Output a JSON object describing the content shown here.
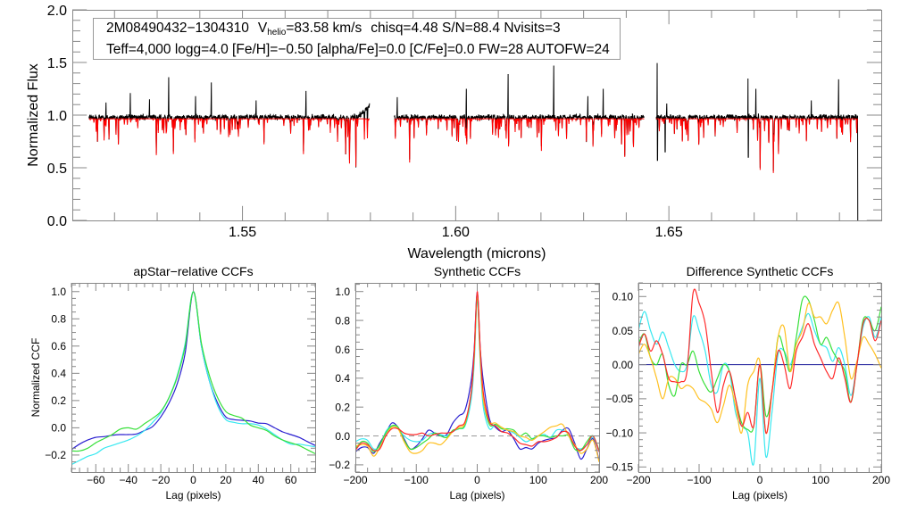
{
  "chart_data": [
    {
      "type": "line",
      "id": "spectrum",
      "title": "",
      "xlabel": "Wavelength (microns)",
      "ylabel": "Normalized Flux",
      "xlim": [
        1.5101,
        1.6998
      ],
      "ylim": [
        0.0,
        2.0
      ],
      "xticks": [
        1.55,
        1.6,
        1.65
      ],
      "xtick_labels": [
        "1.55",
        "1.60",
        "1.65"
      ],
      "yticks": [
        0.0,
        0.5,
        1.0,
        1.5,
        2.0
      ],
      "ytick_labels": [
        "0.0",
        "0.5",
        "1.0",
        "1.5",
        "2.0"
      ],
      "info_line1": {
        "id": "2M08490432−1304310",
        "v_label": "V",
        "v_sub": "helio",
        "v_value": "=83.58 km/s",
        "rest": "chisq=4.48  S/N=88.4  Nvisits=3"
      },
      "info_line2": "Teff=4,000 logg=4.0 [Fe/H]=−0.50 [alpha/Fe]=0.0 [C/Fe]=0.0 FW=28 AUTOFW=24",
      "chips": [
        [
          1.514,
          1.5798
        ],
        [
          1.5856,
          1.6442
        ],
        [
          1.647,
          1.6943
        ]
      ],
      "continuum": {
        "observed": 0.98,
        "model": 0.965
      },
      "series": [
        {
          "name": "observed",
          "color": "#000000"
        },
        {
          "name": "model",
          "color": "#ff0000"
        }
      ],
      "emission_spikes": [
        [
          1.518,
          1.12
        ],
        [
          1.5237,
          1.21
        ],
        [
          1.5282,
          1.15
        ],
        [
          1.5327,
          1.36
        ],
        [
          1.539,
          1.18
        ],
        [
          1.5427,
          1.31
        ],
        [
          1.5532,
          1.14
        ],
        [
          1.5649,
          1.23
        ],
        [
          1.5863,
          1.17
        ],
        [
          1.6025,
          1.25
        ],
        [
          1.6123,
          1.39
        ],
        [
          1.623,
          1.47
        ],
        [
          1.631,
          1.18
        ],
        [
          1.6346,
          1.25
        ],
        [
          1.6473,
          2.05
        ],
        [
          1.6495,
          1.11
        ],
        [
          1.6686,
          1.75
        ],
        [
          1.6704,
          1.25
        ],
        [
          1.6834,
          1.14
        ],
        [
          1.6898,
          1.34
        ]
      ],
      "absorption_lines": [
        [
          1.5209,
          0.72
        ],
        [
          1.5298,
          0.62
        ],
        [
          1.5338,
          0.63
        ],
        [
          1.5742,
          0.63
        ],
        [
          1.5751,
          0.54
        ],
        [
          1.5766,
          0.51
        ],
        [
          1.5892,
          0.55
        ],
        [
          1.6201,
          0.66
        ],
        [
          1.6322,
          0.7
        ],
        [
          1.6389,
          0.72
        ],
        [
          1.6714,
          0.48
        ],
        [
          1.6745,
          0.45
        ],
        [
          1.6757,
          0.63
        ]
      ],
      "observed_dips": [
        [
          1.6473,
          0.57
        ],
        [
          1.6491,
          0.65
        ],
        [
          1.6686,
          0.6
        ],
        [
          1.6943,
          0.0
        ]
      ]
    },
    {
      "type": "line",
      "id": "apstar",
      "title": "apStar−relative CCFs",
      "xlabel": "Lag (pixels)",
      "ylabel": "Normalized CCF",
      "xlim": [
        -75,
        75
      ],
      "ylim": [
        -0.325,
        1.064
      ],
      "xticks": [
        -60,
        -40,
        -20,
        0,
        20,
        40,
        60
      ],
      "xtick_labels": [
        "−60",
        "−40",
        "−20",
        "0",
        "20",
        "40",
        "60"
      ],
      "yticks": [
        -0.2,
        0.0,
        0.2,
        0.4,
        0.6,
        0.8,
        1.0
      ],
      "ytick_labels": [
        "−0.2",
        "0.0",
        "0.2",
        "0.4",
        "0.6",
        "0.8",
        "1.0"
      ],
      "x": [
        -75,
        -70,
        -65,
        -60,
        -55,
        -50,
        -45,
        -40,
        -35,
        -30,
        -25,
        -20,
        -15,
        -10,
        -5,
        0,
        5,
        10,
        15,
        20,
        25,
        30,
        35,
        40,
        45,
        50,
        55,
        60,
        65,
        70,
        75
      ],
      "series": [
        {
          "name": "visit-1",
          "color": "#2a1fd0",
          "values": [
            -0.16,
            -0.12,
            -0.09,
            -0.07,
            -0.065,
            -0.055,
            -0.05,
            -0.05,
            -0.045,
            -0.02,
            0.01,
            0.08,
            0.18,
            0.32,
            0.55,
            1.0,
            0.6,
            0.34,
            0.18,
            0.08,
            0.06,
            0.055,
            0.05,
            0.035,
            0.03,
            0.0,
            -0.03,
            -0.05,
            -0.07,
            -0.1,
            -0.13
          ]
        },
        {
          "name": "visit-2",
          "color": "#38e8f0",
          "values": [
            -0.27,
            -0.24,
            -0.21,
            -0.19,
            -0.15,
            -0.13,
            -0.11,
            -0.09,
            -0.06,
            -0.02,
            0.04,
            0.11,
            0.22,
            0.38,
            0.62,
            1.0,
            0.6,
            0.34,
            0.16,
            0.06,
            0.04,
            0.03,
            0.03,
            0.02,
            -0.01,
            -0.05,
            -0.09,
            -0.12,
            -0.12,
            -0.13,
            -0.14
          ]
        },
        {
          "name": "visit-3",
          "color": "#38e03a",
          "values": [
            -0.17,
            -0.17,
            -0.15,
            -0.11,
            -0.08,
            -0.05,
            -0.01,
            0.0,
            -0.01,
            0.03,
            0.07,
            0.12,
            0.22,
            0.37,
            0.6,
            1.0,
            0.62,
            0.38,
            0.22,
            0.12,
            0.09,
            0.07,
            0.02,
            0.0,
            -0.02,
            -0.06,
            -0.09,
            -0.11,
            -0.13,
            -0.16,
            -0.19
          ]
        }
      ]
    },
    {
      "type": "line",
      "id": "synthetic",
      "title": "Synthetic CCFs",
      "xlabel": "Lag (pixels)",
      "ylabel": "",
      "xlim": [
        -200,
        200
      ],
      "ylim": [
        -0.25,
        1.06
      ],
      "xticks": [
        -200,
        -100,
        0,
        100,
        200
      ],
      "xtick_labels": [
        "−200",
        "−100",
        "0",
        "100",
        "200"
      ],
      "yticks": [
        -0.2,
        0.0,
        0.2,
        0.4,
        0.6,
        0.8,
        1.0
      ],
      "ytick_labels": [
        "−0.2",
        "0.0",
        "0.2",
        "0.4",
        "0.6",
        "0.8",
        "1.0"
      ],
      "reference_line": {
        "y": 0.0,
        "style": "dashed",
        "color": "#999999"
      },
      "x": [
        -200,
        -190,
        -180,
        -170,
        -160,
        -150,
        -140,
        -130,
        -120,
        -110,
        -100,
        -90,
        -80,
        -70,
        -60,
        -50,
        -40,
        -30,
        -20,
        -10,
        -5,
        0,
        5,
        10,
        20,
        30,
        40,
        50,
        60,
        70,
        80,
        90,
        100,
        110,
        120,
        130,
        140,
        150,
        160,
        170,
        180,
        190,
        200
      ],
      "series": [
        {
          "name": "visit-1",
          "color": "#2a1fd0",
          "values": [
            -0.11,
            -0.08,
            -0.08,
            -0.12,
            -0.05,
            0.02,
            0.09,
            0.06,
            -0.02,
            -0.09,
            -0.07,
            -0.02,
            0.04,
            0.02,
            0.0,
            0.01,
            0.09,
            0.14,
            0.18,
            0.38,
            0.6,
            1.0,
            0.6,
            0.38,
            0.12,
            0.06,
            0.03,
            0.04,
            -0.02,
            -0.09,
            -0.08,
            -0.09,
            -0.05,
            -0.03,
            -0.02,
            -0.01,
            0.04,
            0.05,
            -0.05,
            -0.16,
            -0.09,
            -0.02,
            -0.17
          ]
        },
        {
          "name": "visit-2",
          "color": "#38e8f0",
          "values": [
            -0.04,
            -0.02,
            -0.03,
            -0.09,
            -0.07,
            0.03,
            0.07,
            0.05,
            0.0,
            -0.03,
            -0.04,
            -0.03,
            0.01,
            0.02,
            0.01,
            0.0,
            0.03,
            0.05,
            0.07,
            0.25,
            0.5,
            0.93,
            0.5,
            0.2,
            0.05,
            0.08,
            0.05,
            0.04,
            0.02,
            -0.01,
            -0.04,
            -0.02,
            0.0,
            0.01,
            -0.01,
            0.04,
            0.04,
            0.01,
            -0.07,
            -0.09,
            -0.06,
            -0.01,
            -0.1
          ]
        },
        {
          "name": "visit-3",
          "color": "#38e03a",
          "values": [
            -0.09,
            -0.04,
            -0.05,
            -0.11,
            -0.06,
            0.02,
            0.07,
            0.06,
            -0.03,
            -0.09,
            -0.08,
            -0.05,
            -0.02,
            0.02,
            0.0,
            -0.01,
            0.04,
            0.05,
            0.08,
            0.3,
            0.55,
            0.95,
            0.55,
            0.25,
            0.08,
            0.08,
            0.05,
            0.05,
            0.04,
            0.0,
            0.02,
            -0.02,
            0.0,
            0.0,
            -0.01,
            0.0,
            0.0,
            0.0,
            -0.09,
            -0.1,
            -0.04,
            0.0,
            -0.1
          ]
        },
        {
          "name": "visit-4",
          "color": "#ffc020",
          "values": [
            -0.07,
            -0.06,
            -0.07,
            -0.14,
            -0.08,
            0.0,
            0.06,
            0.05,
            -0.04,
            -0.11,
            -0.12,
            -0.1,
            -0.05,
            -0.05,
            -0.06,
            -0.02,
            0.03,
            0.06,
            0.09,
            0.3,
            0.55,
            0.98,
            0.55,
            0.25,
            0.1,
            0.09,
            0.06,
            0.04,
            0.03,
            0.0,
            -0.01,
            -0.03,
            0.0,
            0.03,
            0.06,
            0.07,
            0.08,
            0.0,
            -0.06,
            -0.12,
            -0.09,
            -0.03,
            -0.18
          ]
        },
        {
          "name": "visit-5",
          "color": "#ff2a2a",
          "values": [
            -0.1,
            -0.05,
            -0.06,
            -0.1,
            -0.09,
            0.0,
            0.05,
            0.05,
            0.02,
            0.01,
            0.01,
            0.02,
            0.0,
            0.01,
            0.02,
            0.02,
            0.03,
            0.07,
            0.1,
            0.3,
            0.58,
            1.0,
            0.6,
            0.3,
            0.1,
            0.07,
            0.03,
            0.02,
            -0.01,
            -0.05,
            -0.06,
            -0.07,
            -0.04,
            -0.04,
            -0.03,
            -0.01,
            0.03,
            0.02,
            -0.07,
            -0.1,
            -0.06,
            0.0,
            -0.11
          ]
        }
      ]
    },
    {
      "type": "line",
      "id": "difference",
      "title": "Difference Synthetic CCFs",
      "xlabel": "Lag (pixels)",
      "ylabel": "",
      "xlim": [
        -200,
        200
      ],
      "ylim": [
        -0.1575,
        0.12
      ],
      "xticks": [
        -200,
        -100,
        0,
        100,
        200
      ],
      "xtick_labels": [
        "−200",
        "−100",
        "0",
        "100",
        "200"
      ],
      "yticks": [
        -0.15,
        -0.1,
        -0.05,
        0.0,
        0.05,
        0.1
      ],
      "ytick_labels": [
        "−0.15",
        "−0.10",
        "−0.05",
        "0.00",
        "0.05",
        "0.10"
      ],
      "reference_line": {
        "y": 0.0,
        "style": "solid",
        "color": "#1a1a9a"
      },
      "x": [
        -200,
        -190,
        -180,
        -170,
        -160,
        -150,
        -140,
        -130,
        -120,
        -110,
        -100,
        -90,
        -80,
        -70,
        -60,
        -50,
        -40,
        -30,
        -20,
        -10,
        0,
        10,
        20,
        30,
        40,
        50,
        60,
        70,
        80,
        90,
        100,
        110,
        120,
        130,
        140,
        150,
        160,
        170,
        180,
        190,
        200
      ],
      "series": [
        {
          "name": "visit-2",
          "color": "#38e8f0",
          "values": [
            0.05,
            0.078,
            0.05,
            0.03,
            0.048,
            0.025,
            0.0,
            -0.01,
            0.0,
            0.07,
            0.05,
            0.02,
            -0.03,
            -0.04,
            0.0,
            -0.01,
            -0.07,
            -0.09,
            -0.1,
            -0.145,
            -0.02,
            -0.135,
            -0.07,
            0.015,
            0.02,
            0.0,
            0.03,
            0.055,
            0.075,
            0.05,
            0.03,
            0.025,
            0.005,
            0.025,
            0.0,
            -0.045,
            0.0,
            0.055,
            0.07,
            0.04,
            0.07
          ]
        },
        {
          "name": "visit-3",
          "color": "#38e03a",
          "values": [
            0.03,
            0.045,
            0.01,
            0.0,
            0.015,
            -0.03,
            -0.045,
            0.0,
            0.0,
            0.02,
            -0.01,
            -0.03,
            -0.04,
            -0.02,
            0.0,
            -0.01,
            -0.05,
            -0.085,
            -0.095,
            -0.09,
            0.0,
            -0.075,
            -0.04,
            0.04,
            0.02,
            -0.01,
            0.04,
            0.095,
            0.095,
            0.065,
            0.03,
            0.04,
            0.02,
            0.005,
            -0.01,
            -0.055,
            0.0,
            0.065,
            0.065,
            0.05,
            0.085
          ]
        },
        {
          "name": "visit-4",
          "color": "#ffc020",
          "values": [
            0.015,
            0.03,
            0.01,
            -0.02,
            -0.05,
            -0.02,
            -0.02,
            -0.035,
            -0.03,
            -0.035,
            -0.05,
            -0.055,
            -0.065,
            -0.085,
            -0.06,
            -0.03,
            -0.06,
            -0.1,
            -0.03,
            -0.01,
            0.005,
            -0.1,
            -0.04,
            0.04,
            0.055,
            -0.01,
            0.03,
            0.05,
            0.09,
            0.07,
            0.07,
            0.06,
            0.08,
            0.09,
            0.04,
            -0.02,
            0.005,
            0.04,
            0.03,
            0.015,
            -0.005
          ]
        },
        {
          "name": "visit-5",
          "color": "#ff2a2a",
          "values": [
            0.025,
            0.045,
            0.02,
            0.035,
            0.015,
            -0.02,
            -0.025,
            -0.025,
            -0.01,
            0.105,
            0.09,
            0.06,
            -0.01,
            -0.07,
            -0.03,
            -0.01,
            -0.05,
            -0.09,
            -0.07,
            -0.09,
            0.0,
            -0.1,
            -0.04,
            0.02,
            0.0,
            -0.035,
            0.02,
            0.04,
            0.06,
            0.03,
            0.01,
            -0.01,
            -0.02,
            0.01,
            -0.02,
            -0.055,
            0.0,
            0.06,
            0.065,
            0.035,
            0.065
          ]
        }
      ]
    }
  ]
}
